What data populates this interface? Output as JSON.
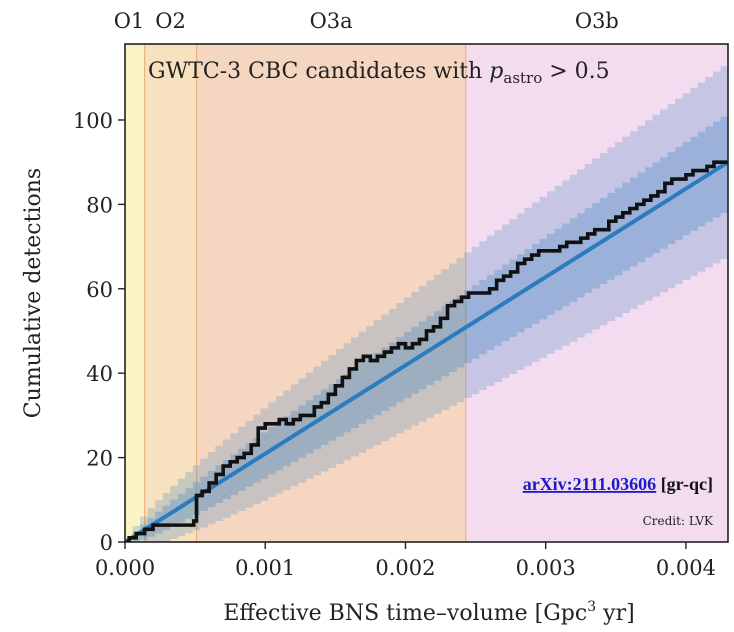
{
  "chart_data": {
    "type": "line",
    "title_main": "GWTC-3 CBC candidates with ",
    "title_var": "p",
    "title_sub": "astro",
    "title_tail": " > 0.5",
    "xlabel_main": "Effective BNS time–volume [Gpc",
    "xlabel_sup": "3",
    "xlabel_tail": " yr]",
    "ylabel": "Cumulative detections",
    "xlim": [
      0,
      0.0043
    ],
    "ylim": [
      0,
      118
    ],
    "x_ticks": [
      0,
      0.001,
      0.002,
      0.003,
      0.004
    ],
    "x_tick_labels": [
      "0.000",
      "0.001",
      "0.002",
      "0.003",
      "0.004"
    ],
    "y_ticks": [
      0,
      20,
      40,
      60,
      80,
      100
    ],
    "y_tick_labels": [
      "0",
      "20",
      "40",
      "60",
      "80",
      "100"
    ],
    "runs": [
      {
        "label": "O1",
        "start": 0,
        "end": 0.00014,
        "color": "#fbf3c6"
      },
      {
        "label": "O2",
        "start": 0.00014,
        "end": 0.00051,
        "color": "#f7e1bf"
      },
      {
        "label": "O3a",
        "start": 0.00051,
        "end": 0.00243,
        "color": "#f5d6c0"
      },
      {
        "label": "O3b",
        "start": 0.00243,
        "end": 0.0043,
        "color": "#f3dcef"
      }
    ],
    "run_edge_color": "#eab47c",
    "expected": {
      "x_end": 0.0043,
      "y_end": 90,
      "band_90_end": [
        68,
        114
      ],
      "band_50_end": [
        79,
        102
      ],
      "color": "#2b7bbf"
    },
    "observed": {
      "color": "#111111",
      "x": [
        0,
        3e-05,
        8e-05,
        0.00014,
        0.0002,
        0.0003,
        0.0004,
        0.00049,
        0.00051,
        0.00055,
        0.0006,
        0.00065,
        0.0007,
        0.00075,
        0.0008,
        0.00085,
        0.0009,
        0.00095,
        0.001,
        0.00105,
        0.0011,
        0.00115,
        0.0012,
        0.00125,
        0.0013,
        0.00135,
        0.0014,
        0.00145,
        0.0015,
        0.00155,
        0.0016,
        0.00165,
        0.0017,
        0.00175,
        0.0018,
        0.00185,
        0.0019,
        0.00195,
        0.002,
        0.00205,
        0.0021,
        0.00215,
        0.0022,
        0.00225,
        0.0023,
        0.00235,
        0.0024,
        0.00245,
        0.0025,
        0.00255,
        0.0026,
        0.00265,
        0.0027,
        0.00275,
        0.0028,
        0.00285,
        0.0029,
        0.00295,
        0.003,
        0.00305,
        0.0031,
        0.00315,
        0.0032,
        0.00325,
        0.0033,
        0.00335,
        0.0034,
        0.00345,
        0.0035,
        0.00355,
        0.0036,
        0.00365,
        0.0037,
        0.00375,
        0.0038,
        0.00385,
        0.0039,
        0.00395,
        0.004,
        0.00405,
        0.0041,
        0.00415,
        0.0042,
        0.0043
      ],
      "y": [
        0,
        1,
        2,
        3,
        4,
        4,
        4,
        5,
        11,
        12,
        14,
        16,
        18,
        19,
        20,
        21,
        23,
        27,
        28,
        28,
        29,
        28,
        29,
        30,
        30,
        32,
        33,
        35,
        37,
        39,
        41,
        43,
        44,
        43,
        44,
        45,
        46,
        47,
        46,
        47,
        48,
        50,
        51,
        53,
        56,
        57,
        58,
        59,
        59,
        59,
        60,
        62,
        63,
        64,
        66,
        67,
        68,
        69,
        69,
        69,
        70,
        71,
        71,
        72,
        73,
        74,
        74,
        76,
        77,
        78,
        79,
        80,
        81,
        82,
        83,
        85,
        86,
        86,
        87,
        88,
        88,
        89,
        90,
        90
      ]
    }
  },
  "annotations": {
    "arxiv_id": "arXiv:2111.03606",
    "arxiv_category": " [gr-qc]",
    "credit": "Credit: LVK"
  }
}
